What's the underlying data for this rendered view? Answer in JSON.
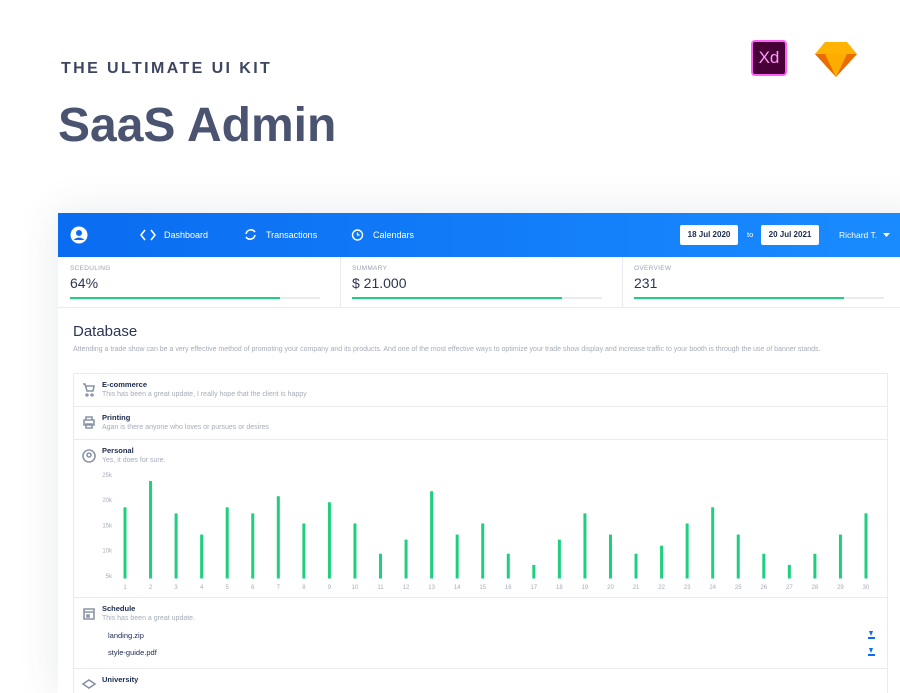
{
  "header": {
    "eyebrow": "THE ULTIMATE UI KIT",
    "title": "SaaS Admin",
    "xd_logo": "Xd"
  },
  "nav": {
    "items": [
      "Dashboard",
      "Transactions",
      "Calendars"
    ],
    "date_from": "18 Jul 2020",
    "to": "to",
    "date_to": "20 Jul 2021",
    "user": "Richard T."
  },
  "stats": [
    {
      "label": "SCEDULING",
      "value": "64%",
      "progress": 84
    },
    {
      "label": "SUMMARY",
      "value": "$ 21.000",
      "progress": 84
    },
    {
      "label": "OVERVIEW",
      "value": "231",
      "progress": 84
    }
  ],
  "database": {
    "title": "Database",
    "description": "Attending a trade show can be a very effective method of promoting your company and its products. And one of the most effective ways to optimize your trade show display and increase traffic to your booth is through the use of banner stands.",
    "items": [
      {
        "title": "E-commerce",
        "subtitle": "This has been a great update, I really hope that the client is happy"
      },
      {
        "title": "Printing",
        "subtitle": "Agan is there anyone who loves or pursues or desires"
      },
      {
        "title": "Personal",
        "subtitle": "Yes, it does for sure."
      },
      {
        "title": "Schedule",
        "subtitle": "This has been a great update.",
        "files": [
          "landing.zip",
          "style-guide.pdf"
        ]
      },
      {
        "title": "University"
      }
    ]
  },
  "chart_data": {
    "type": "bar",
    "color": "#1ed07e",
    "categories": [
      "1",
      "2",
      "3",
      "4",
      "5",
      "6",
      "7",
      "8",
      "9",
      "10",
      "11",
      "12",
      "13",
      "14",
      "15",
      "16",
      "17",
      "18",
      "19",
      "20",
      "21",
      "22",
      "23",
      "24",
      "25",
      "26",
      "27",
      "28",
      "29",
      "30"
    ],
    "values": [
      18600,
      23800,
      17400,
      13200,
      18600,
      17400,
      20800,
      15400,
      19600,
      15400,
      9400,
      12200,
      21800,
      13200,
      15400,
      9400,
      7200,
      12200,
      17400,
      13200,
      9400,
      11000,
      15400,
      18600,
      13200,
      9400,
      7200,
      9400,
      13200,
      17400
    ],
    "ylim": [
      4500,
      25000
    ],
    "yticks": [
      {
        "value": 5000,
        "label": "5k"
      },
      {
        "value": 10000,
        "label": "10k"
      },
      {
        "value": 15000,
        "label": "15k"
      },
      {
        "value": 20000,
        "label": "20k"
      },
      {
        "value": 25000,
        "label": "25k"
      }
    ]
  }
}
